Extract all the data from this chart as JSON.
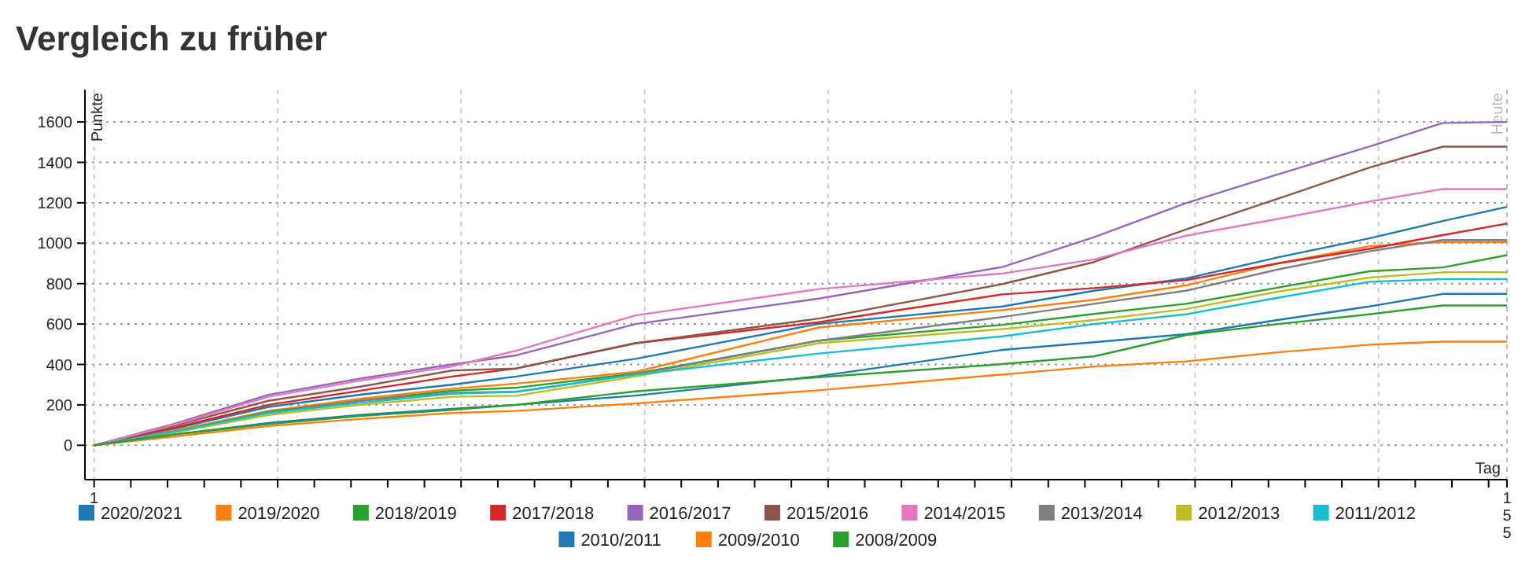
{
  "chart_data": {
    "type": "line",
    "title": "Vergleich zu früher",
    "xlabel": "Tag",
    "ylabel": "Punkte",
    "x": [
      1,
      10,
      20,
      30,
      40,
      47,
      60,
      80,
      100,
      110,
      120,
      130,
      140,
      148,
      155
    ],
    "xlim": [
      0,
      155
    ],
    "xticks": [
      1,
      {
        "value": 5,
        "label": null
      },
      {
        "value": 9,
        "label": null
      },
      {
        "value": 13,
        "label": null
      },
      {
        "value": 17,
        "label": null
      },
      {
        "value": 21,
        "label": null
      },
      {
        "value": 25,
        "label": null
      },
      {
        "value": 29,
        "label": null
      },
      {
        "value": 33,
        "label": null
      },
      {
        "value": 37,
        "label": null
      },
      {
        "value": 41,
        "label": null
      },
      {
        "value": 45,
        "label": null
      },
      {
        "value": 49,
        "label": null
      },
      {
        "value": 53,
        "label": null
      },
      {
        "value": 57,
        "label": null
      },
      {
        "value": 61,
        "label": null
      },
      {
        "value": 65,
        "label": null
      },
      {
        "value": 69,
        "label": null
      },
      {
        "value": 73,
        "label": null
      },
      {
        "value": 77,
        "label": null
      },
      {
        "value": 81,
        "label": null
      },
      {
        "value": 85,
        "label": null
      },
      {
        "value": 89,
        "label": null
      },
      {
        "value": 93,
        "label": null
      },
      {
        "value": 97,
        "label": null
      },
      {
        "value": 101,
        "label": null
      },
      {
        "value": 105,
        "label": null
      },
      {
        "value": 109,
        "label": null
      },
      {
        "value": 113,
        "label": null
      },
      {
        "value": 117,
        "label": null
      },
      {
        "value": 121,
        "label": null
      },
      {
        "value": 125,
        "label": null
      },
      {
        "value": 129,
        "label": null
      },
      {
        "value": 133,
        "label": null
      },
      {
        "value": 137,
        "label": null
      },
      {
        "value": 141,
        "label": null
      },
      {
        "value": 145,
        "label": null
      },
      {
        "value": 149,
        "label": null
      },
      {
        "value": 153,
        "label": null
      },
      155
    ],
    "ylim": [
      -170,
      1760
    ],
    "yticks": [
      0,
      200,
      400,
      600,
      800,
      1000,
      1200,
      1400,
      1600
    ],
    "grid": true,
    "legend": "bottom",
    "marker": "none",
    "line_style": "solid",
    "ref_lines": [
      {
        "axis": "x",
        "value": 155,
        "label": "Heute",
        "color": "#bbbbbb"
      }
    ],
    "series": [
      {
        "name": "2020/2021",
        "color": "#1f77b4",
        "values": [
          0,
          85,
          190,
          250,
          300,
          340,
          428,
          601,
          687,
          765,
          825,
          930,
          1024,
          1110,
          1180
        ]
      },
      {
        "name": "2019/2020",
        "color": "#ff7f0e",
        "values": [
          0,
          75,
          170,
          230,
          280,
          305,
          363,
          583,
          669,
          720,
          791,
          900,
          985,
          1006,
          1006
        ]
      },
      {
        "name": "2018/2019",
        "color": "#2ca02c",
        "values": [
          0,
          70,
          165,
          220,
          270,
          285,
          355,
          518,
          596,
          650,
          700,
          780,
          861,
          880,
          941
        ]
      },
      {
        "name": "2017/2018",
        "color": "#d62728",
        "values": [
          0,
          90,
          200,
          270,
          340,
          380,
          505,
          609,
          747,
          778,
          817,
          900,
          972,
          1040,
          1097
        ]
      },
      {
        "name": "2016/2017",
        "color": "#9467bd",
        "values": [
          0,
          110,
          250,
          330,
          400,
          445,
          600,
          726,
          882,
          1030,
          1198,
          1340,
          1478,
          1595,
          1600
        ]
      },
      {
        "name": "2015/2016",
        "color": "#8c564b",
        "values": [
          0,
          100,
          220,
          290,
          370,
          380,
          505,
          627,
          798,
          907,
          1068,
          1220,
          1374,
          1478,
          1478
        ]
      },
      {
        "name": "2014/2015",
        "color": "#e377c2",
        "values": [
          0,
          105,
          240,
          320,
          390,
          468,
          643,
          773,
          850,
          920,
          1037,
          1120,
          1206,
          1268,
          1268
        ]
      },
      {
        "name": "2013/2014",
        "color": "#7f7f7f",
        "values": [
          0,
          70,
          160,
          220,
          260,
          265,
          350,
          518,
          635,
          700,
          765,
          870,
          960,
          1016,
          1016
        ]
      },
      {
        "name": "2012/2013",
        "color": "#bcbd22",
        "values": [
          0,
          65,
          150,
          200,
          240,
          245,
          340,
          505,
          575,
          620,
          674,
          760,
          830,
          856,
          856
        ]
      },
      {
        "name": "2011/2012",
        "color": "#17becf",
        "values": [
          0,
          70,
          160,
          210,
          255,
          265,
          350,
          454,
          539,
          600,
          648,
          730,
          809,
          822,
          822
        ]
      },
      {
        "name": "2010/2011",
        "color": "#1f77b4",
        "values": [
          0,
          55,
          110,
          150,
          180,
          200,
          246,
          342,
          472,
          510,
          550,
          620,
          687,
          749,
          749
        ]
      },
      {
        "name": "2009/2010",
        "color": "#ff7f0e",
        "values": [
          0,
          45,
          95,
          130,
          160,
          170,
          207,
          272,
          350,
          390,
          415,
          460,
          498,
          513,
          513
        ]
      },
      {
        "name": "2008/2009",
        "color": "#2ca02c",
        "values": [
          0,
          55,
          105,
          145,
          175,
          200,
          267,
          337,
          402,
          440,
          545,
          600,
          648,
          692,
          692
        ]
      }
    ]
  }
}
